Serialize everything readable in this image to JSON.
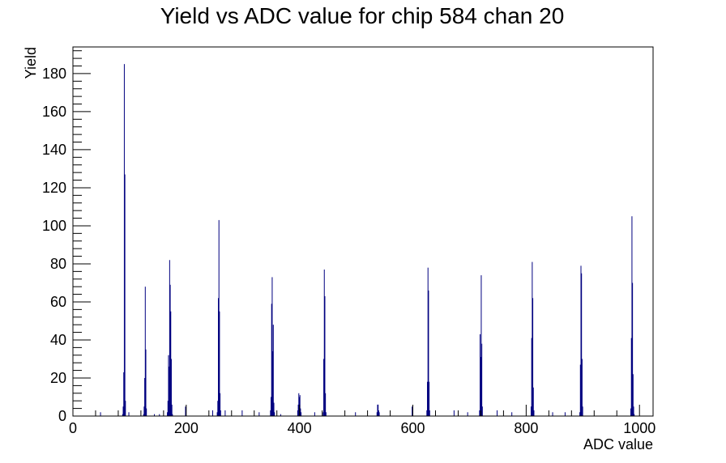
{
  "chart_data": {
    "type": "bar",
    "title": "Yield vs ADC value for chip 584 chan 20",
    "xlabel": "ADC value",
    "ylabel": "Yield",
    "xlim": [
      0,
      1024
    ],
    "ylim": [
      0,
      194
    ],
    "x_ticks": [
      0,
      200,
      400,
      600,
      800,
      1000
    ],
    "y_ticks": [
      0,
      20,
      40,
      60,
      80,
      100,
      120,
      140,
      160,
      180
    ],
    "grid": false,
    "legend": "none",
    "bar_color": "#000080",
    "bin_width": 1,
    "bins": [
      {
        "x": 48,
        "y": 2
      },
      {
        "x": 87,
        "y": 1
      },
      {
        "x": 88,
        "y": 5
      },
      {
        "x": 89,
        "y": 23
      },
      {
        "x": 90,
        "y": 185
      },
      {
        "x": 91,
        "y": 127
      },
      {
        "x": 92,
        "y": 8
      },
      {
        "x": 98,
        "y": 2
      },
      {
        "x": 124,
        "y": 1
      },
      {
        "x": 125,
        "y": 5
      },
      {
        "x": 126,
        "y": 20
      },
      {
        "x": 127,
        "y": 68
      },
      {
        "x": 128,
        "y": 35
      },
      {
        "x": 129,
        "y": 4
      },
      {
        "x": 143,
        "y": 1
      },
      {
        "x": 152,
        "y": 1
      },
      {
        "x": 166,
        "y": 2
      },
      {
        "x": 167,
        "y": 8
      },
      {
        "x": 168,
        "y": 32
      },
      {
        "x": 169,
        "y": 26
      },
      {
        "x": 170,
        "y": 82
      },
      {
        "x": 171,
        "y": 69
      },
      {
        "x": 172,
        "y": 55
      },
      {
        "x": 173,
        "y": 30
      },
      {
        "x": 174,
        "y": 6
      },
      {
        "x": 175,
        "y": 1
      },
      {
        "x": 198,
        "y": 5
      },
      {
        "x": 246,
        "y": 3
      },
      {
        "x": 254,
        "y": 2
      },
      {
        "x": 255,
        "y": 8
      },
      {
        "x": 256,
        "y": 62
      },
      {
        "x": 257,
        "y": 103
      },
      {
        "x": 258,
        "y": 55
      },
      {
        "x": 259,
        "y": 12
      },
      {
        "x": 260,
        "y": 3
      },
      {
        "x": 268,
        "y": 3
      },
      {
        "x": 298,
        "y": 3
      },
      {
        "x": 328,
        "y": 2
      },
      {
        "x": 348,
        "y": 3
      },
      {
        "x": 349,
        "y": 10
      },
      {
        "x": 350,
        "y": 59
      },
      {
        "x": 351,
        "y": 73
      },
      {
        "x": 352,
        "y": 34
      },
      {
        "x": 353,
        "y": 48
      },
      {
        "x": 354,
        "y": 7
      },
      {
        "x": 355,
        "y": 2
      },
      {
        "x": 366,
        "y": 1
      },
      {
        "x": 396,
        "y": 3
      },
      {
        "x": 397,
        "y": 6
      },
      {
        "x": 398,
        "y": 12
      },
      {
        "x": 399,
        "y": 10
      },
      {
        "x": 400,
        "y": 11
      },
      {
        "x": 401,
        "y": 4
      },
      {
        "x": 402,
        "y": 2
      },
      {
        "x": 426,
        "y": 2
      },
      {
        "x": 441,
        "y": 2
      },
      {
        "x": 442,
        "y": 30
      },
      {
        "x": 443,
        "y": 77
      },
      {
        "x": 444,
        "y": 63
      },
      {
        "x": 445,
        "y": 12
      },
      {
        "x": 446,
        "y": 2
      },
      {
        "x": 498,
        "y": 2
      },
      {
        "x": 536,
        "y": 2
      },
      {
        "x": 537,
        "y": 6
      },
      {
        "x": 538,
        "y": 6
      },
      {
        "x": 539,
        "y": 3
      },
      {
        "x": 540,
        "y": 2
      },
      {
        "x": 598,
        "y": 5
      },
      {
        "x": 624,
        "y": 3
      },
      {
        "x": 625,
        "y": 18
      },
      {
        "x": 626,
        "y": 78
      },
      {
        "x": 627,
        "y": 66
      },
      {
        "x": 628,
        "y": 18
      },
      {
        "x": 629,
        "y": 3
      },
      {
        "x": 672,
        "y": 3
      },
      {
        "x": 696,
        "y": 2
      },
      {
        "x": 717,
        "y": 3
      },
      {
        "x": 718,
        "y": 43
      },
      {
        "x": 719,
        "y": 31
      },
      {
        "x": 720,
        "y": 74
      },
      {
        "x": 721,
        "y": 38
      },
      {
        "x": 722,
        "y": 5
      },
      {
        "x": 748,
        "y": 3
      },
      {
        "x": 774,
        "y": 2
      },
      {
        "x": 808,
        "y": 5
      },
      {
        "x": 809,
        "y": 41
      },
      {
        "x": 810,
        "y": 81
      },
      {
        "x": 811,
        "y": 62
      },
      {
        "x": 812,
        "y": 15
      },
      {
        "x": 813,
        "y": 3
      },
      {
        "x": 846,
        "y": 2
      },
      {
        "x": 868,
        "y": 2
      },
      {
        "x": 894,
        "y": 2
      },
      {
        "x": 895,
        "y": 27
      },
      {
        "x": 896,
        "y": 79
      },
      {
        "x": 897,
        "y": 75
      },
      {
        "x": 898,
        "y": 30
      },
      {
        "x": 899,
        "y": 5
      },
      {
        "x": 984,
        "y": 4
      },
      {
        "x": 985,
        "y": 41
      },
      {
        "x": 986,
        "y": 105
      },
      {
        "x": 987,
        "y": 70
      },
      {
        "x": 988,
        "y": 22
      },
      {
        "x": 989,
        "y": 5
      },
      {
        "x": 990,
        "y": 1
      }
    ]
  }
}
